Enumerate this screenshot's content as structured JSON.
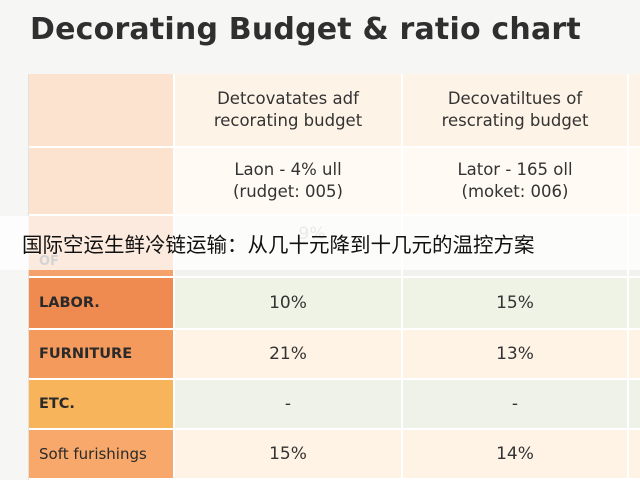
{
  "title": "Decorating Budget & ratio chart",
  "header": {
    "col1": [
      "Detcovatates adf",
      "recorating budget"
    ],
    "col2": [
      "Decovatiltues of",
      "rescrating budget"
    ]
  },
  "subheader": {
    "col1": [
      "Laon - 4% ull",
      "(rudget: 005)"
    ],
    "col2": [
      "Lator - 165 oll",
      "(moket: 006)"
    ]
  },
  "partial_row": {
    "label": "OF",
    "col1_partial": "9%"
  },
  "rows": [
    {
      "label": "LABOR.",
      "col1": "10%",
      "col2": "15%"
    },
    {
      "label": "FURNITURE",
      "col1": "21%",
      "col2": "13%"
    },
    {
      "label": "ETC.",
      "col1": "-",
      "col2": "-"
    },
    {
      "label": "Soft furishings",
      "col1": "15%",
      "col2": "14%"
    }
  ],
  "overlay_caption": "国际空运生鲜冷链运输：从几十元降到十几元的温控方案",
  "colors": {
    "label_orange_dark": "#ef8b50",
    "label_orange_mid": "#f39a5c",
    "label_yellow": "#f8b45a",
    "header_peach": "#fbe3cf"
  }
}
